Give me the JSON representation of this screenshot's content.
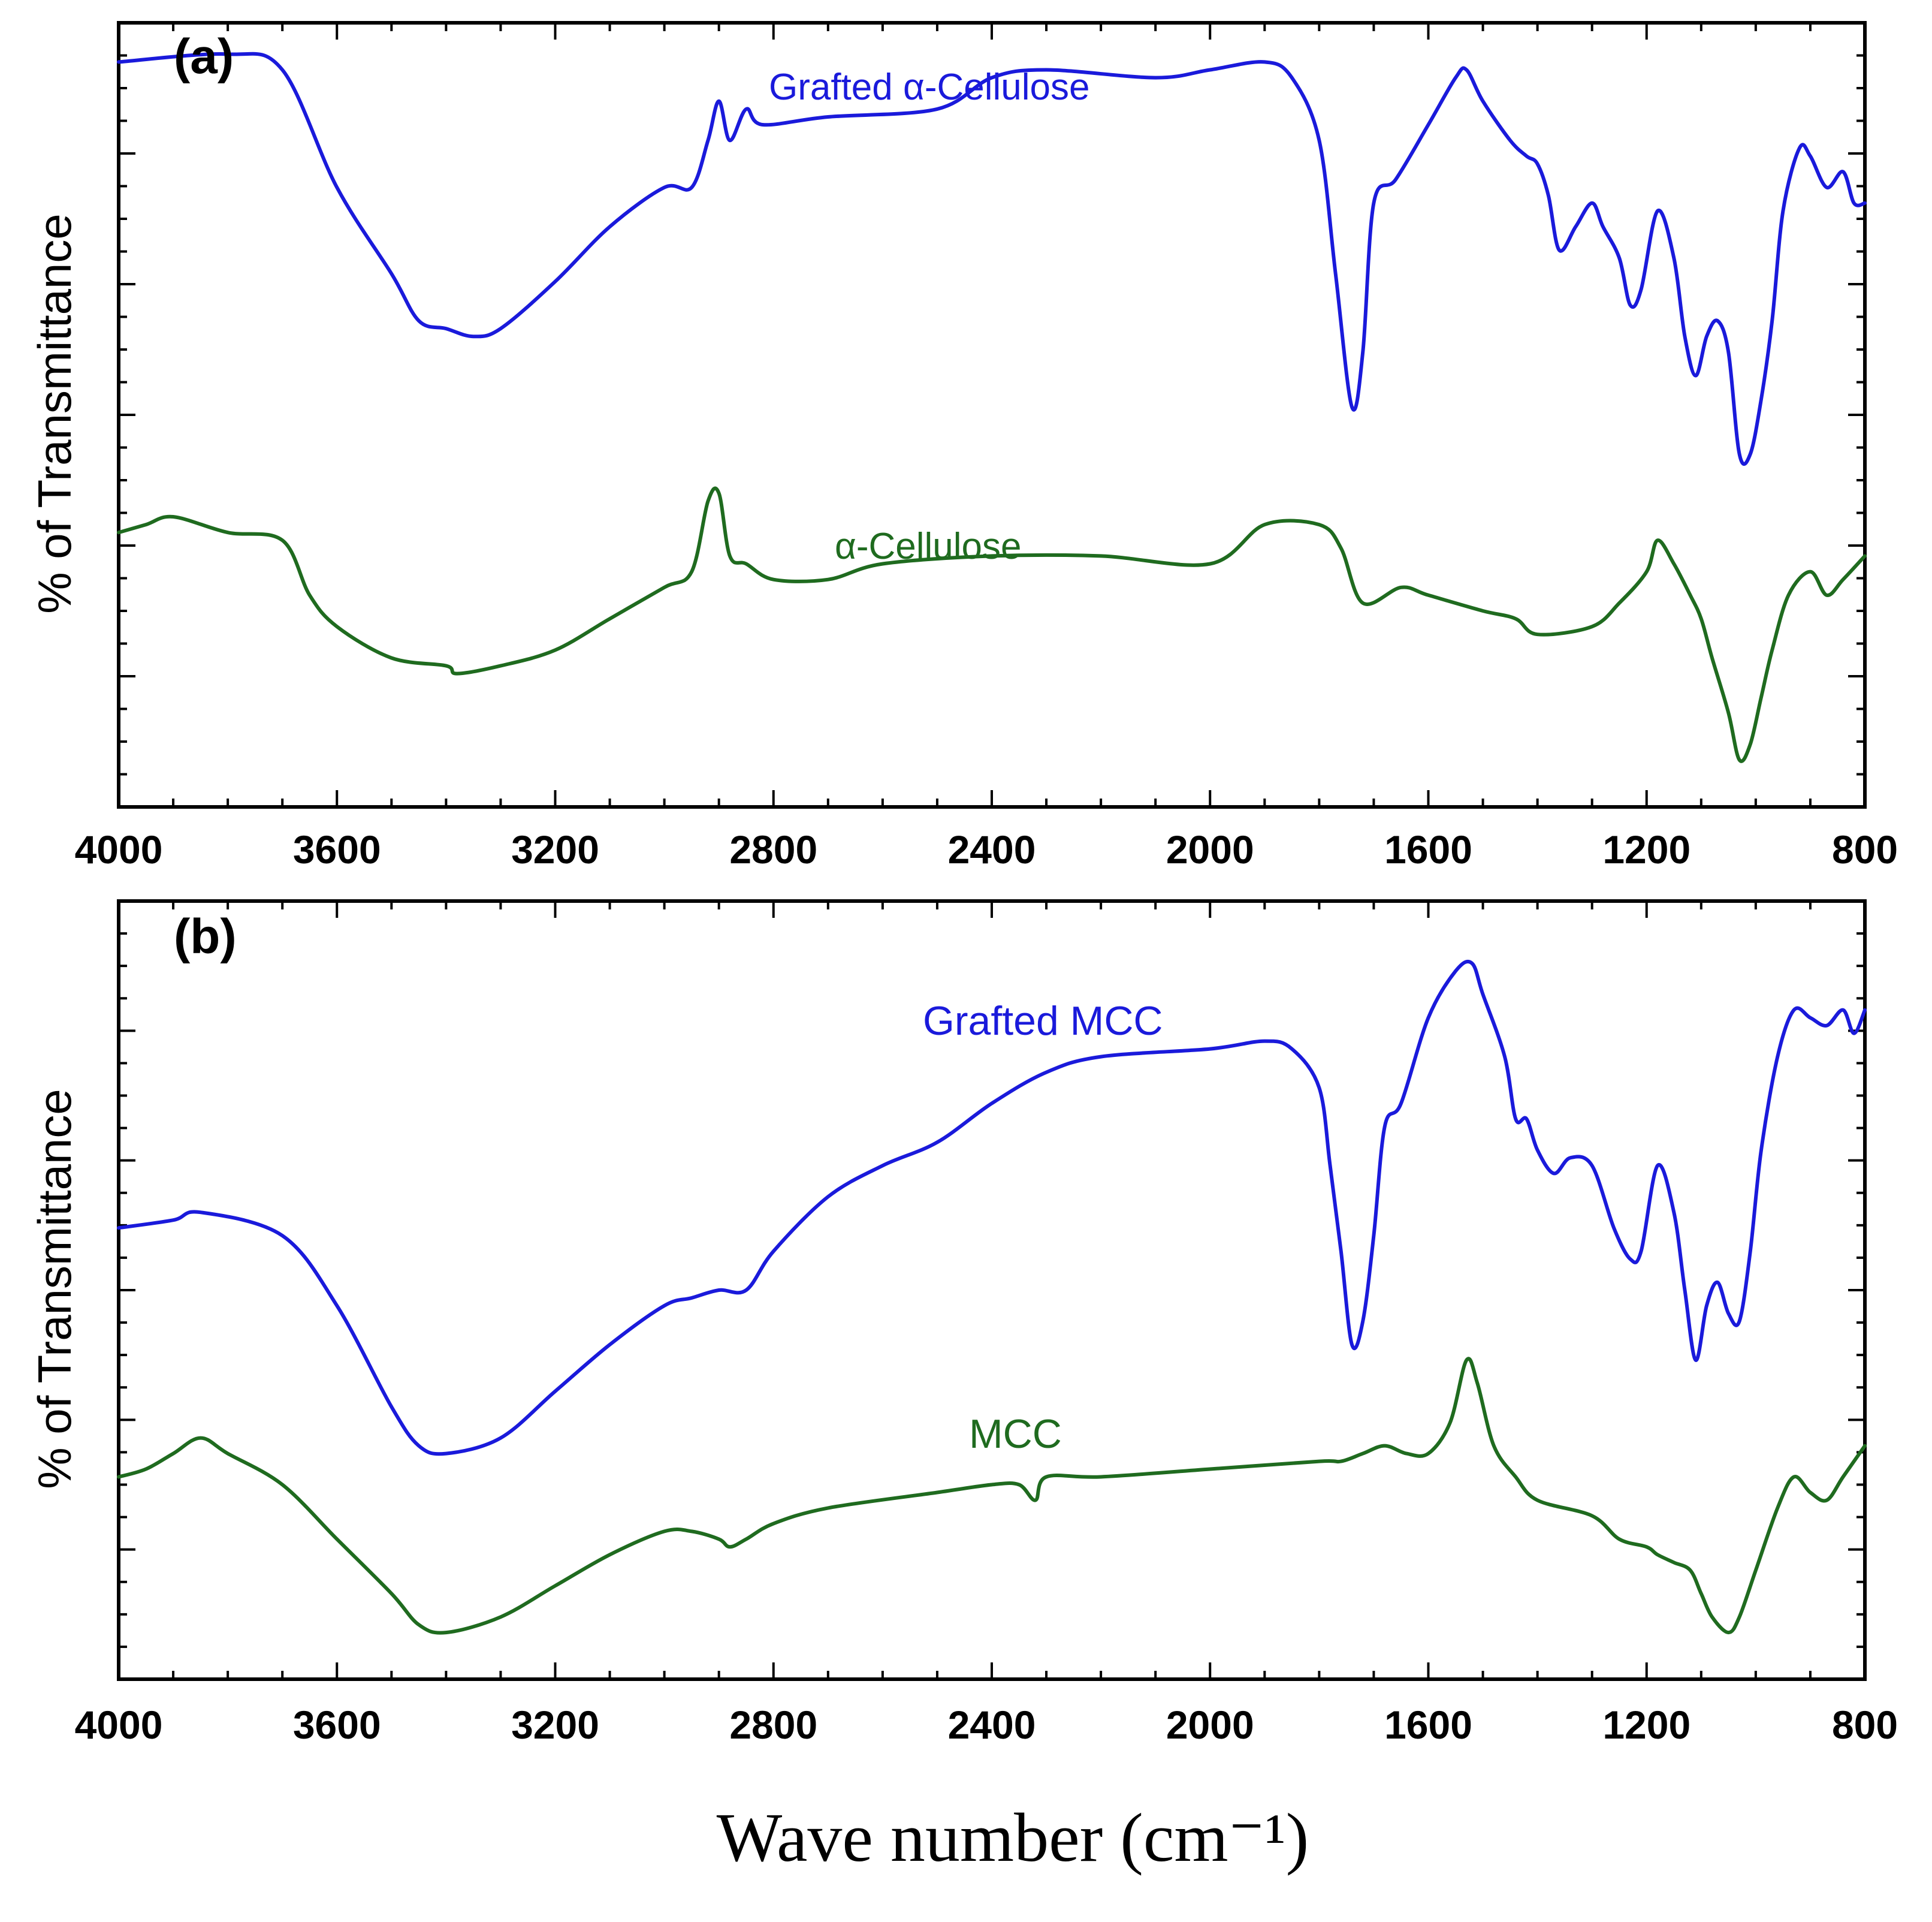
{
  "chart_data": [
    {
      "type": "line",
      "panel": "(a)",
      "xlabel": "Wave number (cm⁻¹)",
      "ylabel": "% of Transmittance",
      "xlim": [
        4000,
        800
      ],
      "ylim": [
        0,
        100
      ],
      "x_ticks": [
        "4000",
        "3600",
        "3200",
        "2800",
        "2400",
        "2000",
        "1600",
        "1200",
        "800"
      ],
      "y_ticks_labeled": false,
      "series": [
        {
          "name": "Grafted α-Cellulose",
          "color": "#1a1adb",
          "points": [
            [
              4000,
              95
            ],
            [
              3800,
              96
            ],
            [
              3700,
              94
            ],
            [
              3600,
              79
            ],
            [
              3500,
              68
            ],
            [
              3450,
              62
            ],
            [
              3400,
              61
            ],
            [
              3350,
              60
            ],
            [
              3300,
              61
            ],
            [
              3200,
              67
            ],
            [
              3100,
              74
            ],
            [
              3000,
              79
            ],
            [
              2950,
              79
            ],
            [
              2920,
              85
            ],
            [
              2900,
              90
            ],
            [
              2880,
              85
            ],
            [
              2850,
              89
            ],
            [
              2820,
              87
            ],
            [
              2700,
              88
            ],
            [
              2500,
              89
            ],
            [
              2400,
              93
            ],
            [
              2300,
              94
            ],
            [
              2100,
              93
            ],
            [
              2000,
              94
            ],
            [
              1900,
              95
            ],
            [
              1850,
              93
            ],
            [
              1800,
              85
            ],
            [
              1770,
              68
            ],
            [
              1740,
              51
            ],
            [
              1720,
              58
            ],
            [
              1700,
              77
            ],
            [
              1660,
              80
            ],
            [
              1600,
              87
            ],
            [
              1550,
              93
            ],
            [
              1530,
              94
            ],
            [
              1500,
              90
            ],
            [
              1450,
              85
            ],
            [
              1420,
              83
            ],
            [
              1400,
              82
            ],
            [
              1380,
              78
            ],
            [
              1360,
              71
            ],
            [
              1330,
              74
            ],
            [
              1300,
              77
            ],
            [
              1280,
              74
            ],
            [
              1250,
              70
            ],
            [
              1230,
              64
            ],
            [
              1210,
              66
            ],
            [
              1180,
              76
            ],
            [
              1150,
              70
            ],
            [
              1130,
              60
            ],
            [
              1110,
              55
            ],
            [
              1090,
              60
            ],
            [
              1070,
              62
            ],
            [
              1050,
              58
            ],
            [
              1030,
              45
            ],
            [
              1010,
              45
            ],
            [
              990,
              52
            ],
            [
              970,
              62
            ],
            [
              950,
              76
            ],
            [
              920,
              84
            ],
            [
              900,
              83
            ],
            [
              870,
              79
            ],
            [
              840,
              81
            ],
            [
              820,
              77
            ],
            [
              800,
              77
            ]
          ]
        },
        {
          "name": "α-Cellulose",
          "color": "#1f6b1f",
          "points": [
            [
              4000,
              35
            ],
            [
              3950,
              36
            ],
            [
              3900,
              37
            ],
            [
              3800,
              35
            ],
            [
              3700,
              34
            ],
            [
              3650,
              27
            ],
            [
              3600,
              23
            ],
            [
              3500,
              19
            ],
            [
              3400,
              18
            ],
            [
              3380,
              17
            ],
            [
              3300,
              18
            ],
            [
              3200,
              20
            ],
            [
              3100,
              24
            ],
            [
              3000,
              28
            ],
            [
              2950,
              30
            ],
            [
              2920,
              39
            ],
            [
              2900,
              40
            ],
            [
              2880,
              32
            ],
            [
              2850,
              31
            ],
            [
              2800,
              29
            ],
            [
              2700,
              29
            ],
            [
              2600,
              31
            ],
            [
              2400,
              32
            ],
            [
              2200,
              32
            ],
            [
              2000,
              31
            ],
            [
              1900,
              36
            ],
            [
              1800,
              36
            ],
            [
              1760,
              33
            ],
            [
              1720,
              26
            ],
            [
              1650,
              28
            ],
            [
              1600,
              27
            ],
            [
              1500,
              25
            ],
            [
              1440,
              24
            ],
            [
              1400,
              22
            ],
            [
              1300,
              23
            ],
            [
              1250,
              26
            ],
            [
              1200,
              30
            ],
            [
              1180,
              34
            ],
            [
              1150,
              31
            ],
            [
              1120,
              27
            ],
            [
              1100,
              24
            ],
            [
              1080,
              19
            ],
            [
              1050,
              12
            ],
            [
              1030,
              6
            ],
            [
              1010,
              8
            ],
            [
              990,
              14
            ],
            [
              970,
              20
            ],
            [
              940,
              27
            ],
            [
              900,
              30
            ],
            [
              870,
              27
            ],
            [
              840,
              29
            ],
            [
              800,
              32
            ]
          ]
        }
      ]
    },
    {
      "type": "line",
      "panel": "(b)",
      "xlabel": "Wave number (cm⁻¹)",
      "ylabel": "% of Transmittance",
      "xlim": [
        4000,
        800
      ],
      "ylim": [
        0,
        100
      ],
      "x_ticks": [
        "4000",
        "3600",
        "3200",
        "2800",
        "2400",
        "2000",
        "1600",
        "1200",
        "800"
      ],
      "y_ticks_labeled": false,
      "series": [
        {
          "name": "Grafted MCC",
          "color": "#1a1adb",
          "points": [
            [
              4000,
              58
            ],
            [
              3900,
              59
            ],
            [
              3850,
              60
            ],
            [
              3700,
              57
            ],
            [
              3600,
              48
            ],
            [
              3500,
              35
            ],
            [
              3450,
              30
            ],
            [
              3400,
              29
            ],
            [
              3300,
              31
            ],
            [
              3200,
              37
            ],
            [
              3100,
              43
            ],
            [
              3000,
              48
            ],
            [
              2950,
              49
            ],
            [
              2900,
              50
            ],
            [
              2850,
              50
            ],
            [
              2800,
              55
            ],
            [
              2700,
              62
            ],
            [
              2600,
              66
            ],
            [
              2500,
              69
            ],
            [
              2400,
              74
            ],
            [
              2300,
              78
            ],
            [
              2200,
              80
            ],
            [
              2000,
              81
            ],
            [
              1900,
              82
            ],
            [
              1850,
              81
            ],
            [
              1800,
              76
            ],
            [
              1780,
              66
            ],
            [
              1760,
              55
            ],
            [
              1740,
              43
            ],
            [
              1720,
              46
            ],
            [
              1700,
              57
            ],
            [
              1680,
              71
            ],
            [
              1650,
              74
            ],
            [
              1600,
              85
            ],
            [
              1550,
              91
            ],
            [
              1520,
              92
            ],
            [
              1500,
              88
            ],
            [
              1460,
              80
            ],
            [
              1440,
              72
            ],
            [
              1420,
              72
            ],
            [
              1400,
              68
            ],
            [
              1370,
              65
            ],
            [
              1340,
              67
            ],
            [
              1300,
              66
            ],
            [
              1260,
              58
            ],
            [
              1230,
              54
            ],
            [
              1210,
              55
            ],
            [
              1180,
              66
            ],
            [
              1150,
              60
            ],
            [
              1130,
              50
            ],
            [
              1110,
              41
            ],
            [
              1090,
              48
            ],
            [
              1070,
              51
            ],
            [
              1050,
              47
            ],
            [
              1030,
              46
            ],
            [
              1010,
              55
            ],
            [
              990,
              68
            ],
            [
              960,
              80
            ],
            [
              930,
              86
            ],
            [
              900,
              85
            ],
            [
              870,
              84
            ],
            [
              840,
              86
            ],
            [
              820,
              83
            ],
            [
              800,
              86
            ]
          ]
        },
        {
          "name": "MCC",
          "color": "#1f6b1f",
          "points": [
            [
              4000,
              26
            ],
            [
              3950,
              27
            ],
            [
              3900,
              29
            ],
            [
              3850,
              31
            ],
            [
              3800,
              29
            ],
            [
              3700,
              25
            ],
            [
              3600,
              18
            ],
            [
              3500,
              11
            ],
            [
              3450,
              7
            ],
            [
              3400,
              6
            ],
            [
              3300,
              8
            ],
            [
              3200,
              12
            ],
            [
              3100,
              16
            ],
            [
              3000,
              19
            ],
            [
              2950,
              19
            ],
            [
              2900,
              18
            ],
            [
              2880,
              17
            ],
            [
              2850,
              18
            ],
            [
              2800,
              20
            ],
            [
              2700,
              22
            ],
            [
              2500,
              24
            ],
            [
              2400,
              25
            ],
            [
              2350,
              25
            ],
            [
              2320,
              23
            ],
            [
              2300,
              26
            ],
            [
              2200,
              26
            ],
            [
              2000,
              27
            ],
            [
              1800,
              28
            ],
            [
              1760,
              28
            ],
            [
              1720,
              29
            ],
            [
              1680,
              30
            ],
            [
              1640,
              29
            ],
            [
              1600,
              29
            ],
            [
              1560,
              33
            ],
            [
              1530,
              41
            ],
            [
              1510,
              38
            ],
            [
              1480,
              30
            ],
            [
              1440,
              26
            ],
            [
              1400,
              23
            ],
            [
              1300,
              21
            ],
            [
              1250,
              18
            ],
            [
              1200,
              17
            ],
            [
              1180,
              16
            ],
            [
              1150,
              15
            ],
            [
              1120,
              14
            ],
            [
              1100,
              11
            ],
            [
              1080,
              8
            ],
            [
              1050,
              6
            ],
            [
              1030,
              8
            ],
            [
              1000,
              14
            ],
            [
              960,
              22
            ],
            [
              930,
              26
            ],
            [
              900,
              24
            ],
            [
              870,
              23
            ],
            [
              840,
              26
            ],
            [
              800,
              30
            ]
          ]
        }
      ]
    }
  ]
}
